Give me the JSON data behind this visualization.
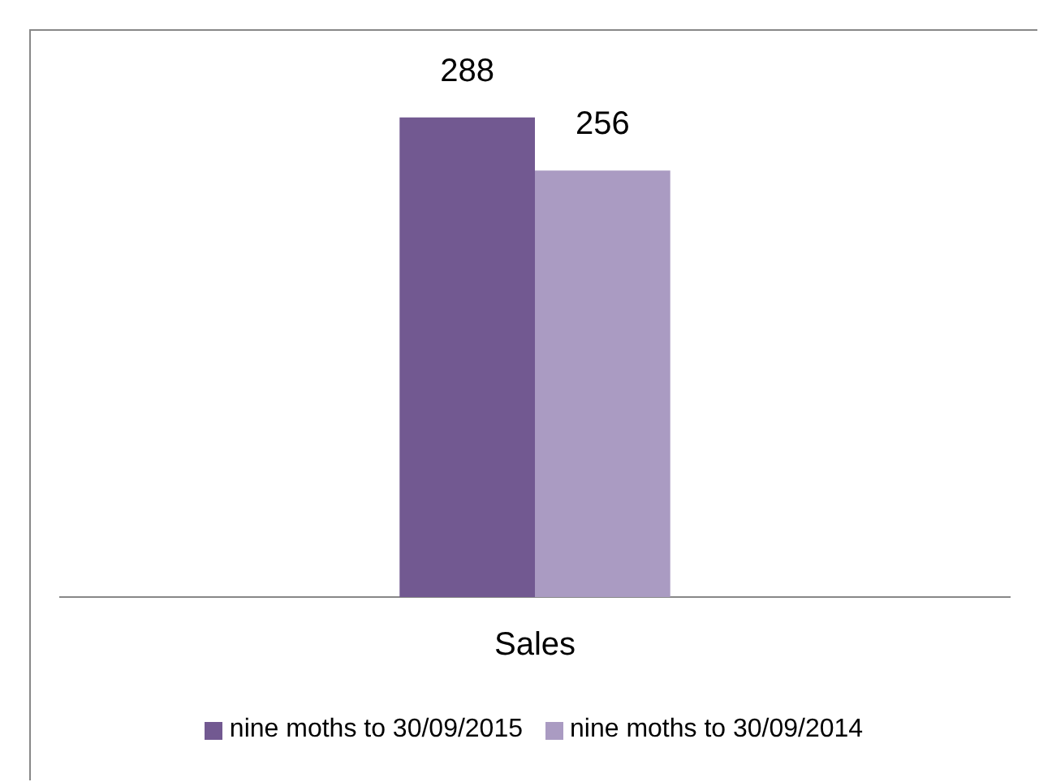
{
  "chart_data": {
    "type": "bar",
    "categories": [
      "Sales"
    ],
    "series": [
      {
        "name": "nine moths to 30/09/2015",
        "color": "#725991",
        "values": [
          288
        ]
      },
      {
        "name": "nine moths to 30/09/2014",
        "color": "#aa9bc2",
        "values": [
          256
        ]
      }
    ],
    "tick_labels": "x",
    "data_labels": true,
    "legend": "bottom",
    "grid": false
  }
}
